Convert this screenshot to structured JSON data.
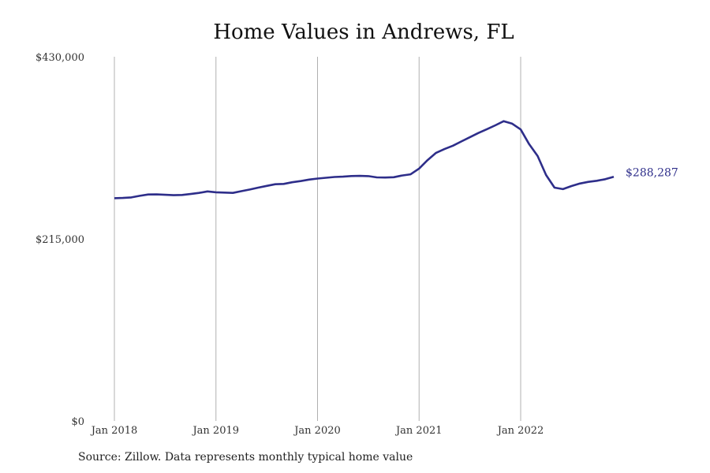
{
  "title": "Home Values in Andrews, FL",
  "source": "Source: Zillow. Data represents monthly typical home value",
  "colors": {
    "line": "#2e2e8a",
    "grid": "#b0b0b0",
    "text": "#333333"
  },
  "chart_data": {
    "type": "line",
    "title": "Home Values in Andrews, FL",
    "xlabel": "",
    "ylabel": "",
    "x_ticks": [
      "Jan 2018",
      "Jan 2019",
      "Jan 2020",
      "Jan 2021",
      "Jan 2022"
    ],
    "y_ticks": [
      "$0",
      "$215,000",
      "$430,000"
    ],
    "ylim": [
      0,
      430000
    ],
    "grid": "vertical lines at x ticks",
    "end_label": "$288,287",
    "series": [
      {
        "x": [
          "2018-01",
          "2018-02",
          "2018-03",
          "2018-04",
          "2018-05",
          "2018-06",
          "2018-07",
          "2018-08",
          "2018-09",
          "2018-10",
          "2018-11",
          "2018-12",
          "2019-01",
          "2019-02",
          "2019-03",
          "2019-04",
          "2019-05",
          "2019-06",
          "2019-07",
          "2019-08",
          "2019-09",
          "2019-10",
          "2019-11",
          "2019-12",
          "2020-01",
          "2020-02",
          "2020-03",
          "2020-04",
          "2020-05",
          "2020-06",
          "2020-07",
          "2020-08",
          "2020-09",
          "2020-10",
          "2020-11",
          "2020-12",
          "2021-01",
          "2021-02",
          "2021-03",
          "2021-04",
          "2021-05",
          "2021-06",
          "2021-07",
          "2021-08",
          "2021-09",
          "2021-10",
          "2021-11",
          "2021-12",
          "2022-01",
          "2022-02",
          "2022-03",
          "2022-04",
          "2022-05",
          "2022-06",
          "2022-07",
          "2022-08",
          "2022-09",
          "2022-10",
          "2022-11",
          "2022-12"
        ],
        "values": [
          263000,
          263300,
          264000,
          265800,
          267400,
          267500,
          267000,
          266600,
          266800,
          268000,
          269300,
          271000,
          270000,
          269600,
          269300,
          271300,
          273300,
          275500,
          277500,
          279500,
          279900,
          281800,
          283200,
          285000,
          286200,
          287100,
          288100,
          288400,
          289200,
          289400,
          289100,
          287600,
          287400,
          287800,
          289800,
          291200,
          298000,
          308000,
          316500,
          321000,
          325000,
          330000,
          335000,
          340000,
          344500,
          349000,
          354000,
          351000,
          344200,
          326900,
          312800,
          290400,
          275500,
          273700,
          277400,
          280300,
          282300,
          283600,
          285500,
          288287
        ]
      }
    ]
  }
}
